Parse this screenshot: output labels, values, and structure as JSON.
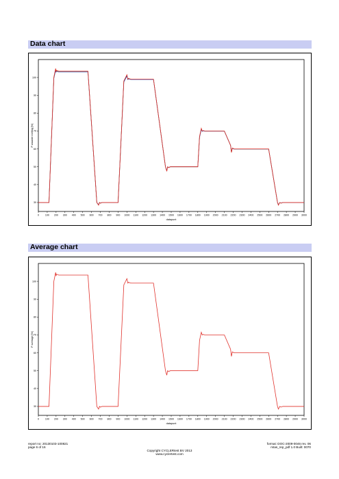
{
  "sections": {
    "data_title": "Data chart",
    "average_title": "Average chart"
  },
  "chart_data": [
    {
      "type": "line",
      "title": "Data chart",
      "xlabel": "datapunt",
      "ylabel": "P waarde meting [%]",
      "xlim": [
        0,
        3000
      ],
      "ylim": [
        25,
        110
      ],
      "xticks": [
        0,
        100,
        200,
        300,
        400,
        500,
        600,
        700,
        800,
        900,
        1000,
        1100,
        1200,
        1300,
        1400,
        1500,
        1600,
        1700,
        1800,
        1900,
        2000,
        2100,
        2200,
        2300,
        2400,
        2500,
        2600,
        2700,
        2800,
        2900,
        3000
      ],
      "yticks": [
        30,
        40,
        50,
        60,
        70,
        80,
        90,
        100
      ],
      "x": [
        0,
        120,
        175,
        195,
        200,
        205,
        215,
        230,
        250,
        560,
        660,
        680,
        690,
        700,
        720,
        900,
        965,
        1000,
        1010,
        1020,
        1030,
        1050,
        1300,
        1435,
        1450,
        1460,
        1470,
        1490,
        1800,
        1820,
        1840,
        1850,
        1860,
        1880,
        2100,
        2170,
        2180,
        2190,
        2210,
        2600,
        2700,
        2710,
        2725,
        2740,
        2760,
        3000
      ],
      "series": [
        {
          "color": "#e0302a",
          "values": [
            30,
            30,
            100,
            105,
            103,
            104,
            103.8,
            103.5,
            103.5,
            103.5,
            30,
            28.5,
            30,
            29.6,
            30,
            30,
            98,
            101.5,
            99,
            99.5,
            99.2,
            99,
            99,
            50,
            47.5,
            50,
            49.5,
            50,
            50,
            67,
            71.5,
            70,
            70.3,
            70,
            70,
            62,
            58,
            60.5,
            60,
            60,
            30,
            28.5,
            30,
            29.6,
            30,
            30
          ]
        },
        {
          "color": "#1b3ea6",
          "values": [
            30,
            30,
            99.5,
            104,
            102.8,
            103.6,
            103.2,
            103.1,
            103.1,
            103.1,
            30,
            28.8,
            30,
            29.7,
            30,
            30,
            97.5,
            100.8,
            98.8,
            99.2,
            99,
            98.8,
            98.8,
            50,
            47.8,
            50,
            49.6,
            50,
            50,
            66.5,
            71,
            69.8,
            70.1,
            69.9,
            69.9,
            62,
            58.2,
            60.3,
            59.9,
            59.9,
            30,
            28.8,
            30,
            29.7,
            30,
            30
          ]
        },
        {
          "color": "#c8a020",
          "values": [
            30,
            30,
            100.2,
            104.6,
            103.3,
            103.9,
            103.6,
            103.4,
            103.3,
            103.3,
            30,
            28.6,
            30,
            29.6,
            30,
            30,
            97.8,
            101.2,
            99,
            99.4,
            99.1,
            98.9,
            98.9,
            50,
            47.6,
            50,
            49.5,
            50,
            50,
            66.8,
            71.3,
            69.9,
            70.2,
            70,
            70,
            62,
            58,
            60.4,
            59.9,
            59.9,
            30,
            28.6,
            30,
            29.6,
            30,
            30
          ]
        }
      ]
    },
    {
      "type": "line",
      "title": "Average chart",
      "xlabel": "datapunt",
      "ylabel": "P average [%]",
      "xlim": [
        0,
        3000
      ],
      "ylim": [
        25,
        110
      ],
      "xticks": [
        0,
        100,
        200,
        300,
        400,
        500,
        600,
        700,
        800,
        900,
        1000,
        1100,
        1200,
        1300,
        1400,
        1500,
        1600,
        1700,
        1800,
        1900,
        2000,
        2100,
        2200,
        2300,
        2400,
        2500,
        2600,
        2700,
        2800,
        2900,
        3000
      ],
      "yticks": [
        30,
        40,
        50,
        60,
        70,
        80,
        90,
        100
      ],
      "x": [
        0,
        120,
        175,
        195,
        200,
        205,
        215,
        230,
        250,
        560,
        660,
        680,
        690,
        700,
        720,
        900,
        965,
        1000,
        1010,
        1020,
        1030,
        1050,
        1300,
        1435,
        1450,
        1460,
        1470,
        1490,
        1800,
        1820,
        1840,
        1850,
        1860,
        1880,
        2100,
        2170,
        2180,
        2190,
        2210,
        2600,
        2700,
        2710,
        2725,
        2740,
        2760,
        3000
      ],
      "series": [
        {
          "color": "#e0302a",
          "values": [
            30,
            30,
            100,
            105,
            103,
            104,
            103.8,
            103.5,
            103.5,
            103.5,
            30,
            28.5,
            30,
            29.6,
            30,
            30,
            98,
            101.5,
            99,
            99.5,
            99.2,
            99,
            99,
            50,
            47.5,
            50,
            49.5,
            50,
            50,
            67,
            71.5,
            70,
            70.3,
            70,
            70,
            62,
            58,
            60.5,
            60,
            60,
            30,
            28.5,
            30,
            29.6,
            30,
            30
          ]
        }
      ]
    }
  ],
  "footer": {
    "report_no": "report no: 20130103-100821",
    "page": "page 6 of 16",
    "copyright": "Copyright CYCLERtest BV 2013",
    "website": "www.cyclertest.com",
    "format": "format: DOC-2009-0046 rev. 06",
    "build": "mtas_rep_pdf 1.0 Built: 0070"
  }
}
